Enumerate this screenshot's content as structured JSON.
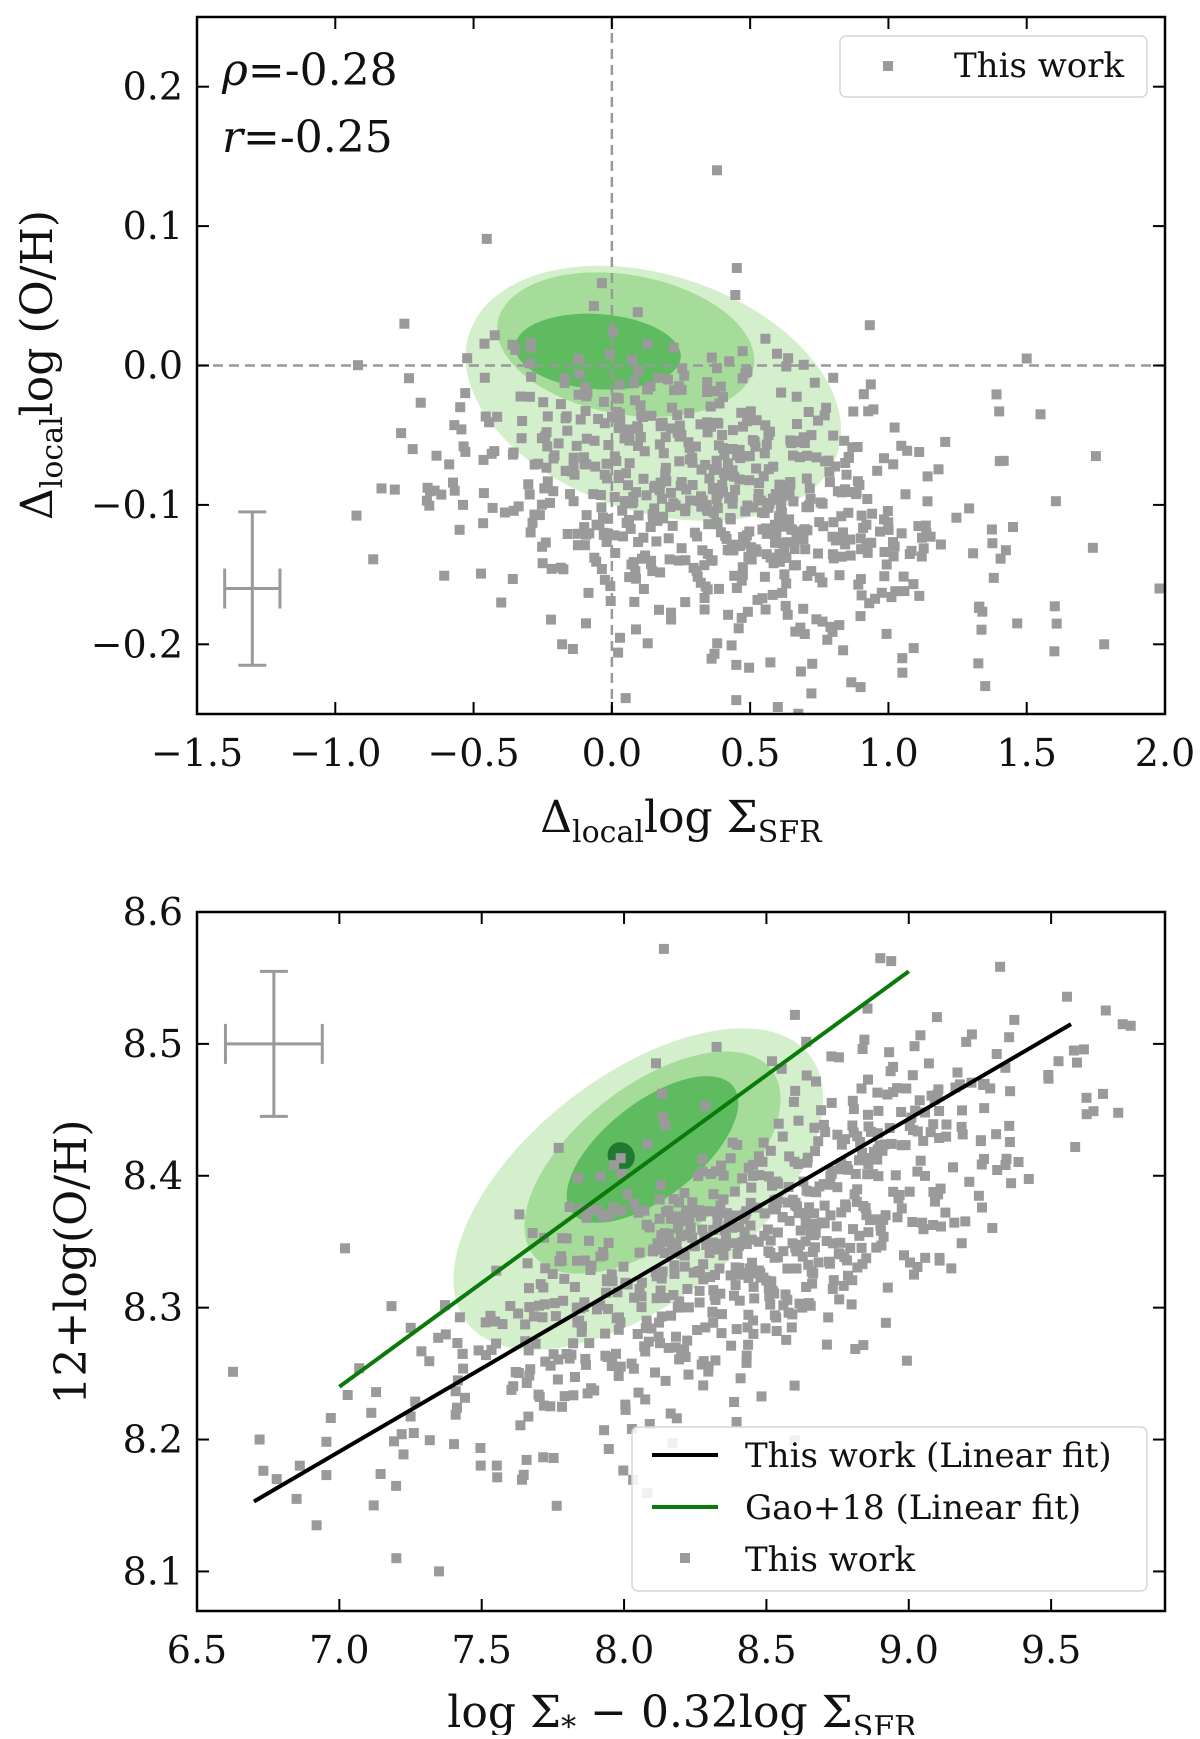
{
  "colors": {
    "points": "#9a9a9a",
    "errorbar": "#9a9a9a",
    "fit_black": "#000000",
    "fit_green": "#0a7a0a",
    "contour_light": "#d4efcc",
    "contour_mid": "#a6dc9a",
    "contour_dark": "#5fbb5f",
    "contour_darkest": "#1f7a30",
    "refline": "#999999"
  },
  "chart_data": [
    {
      "type": "scatter",
      "title": "",
      "xlabel": {
        "main": "Δ",
        "sub": "local",
        "rest": "log Σ",
        "sub2": "SFR"
      },
      "ylabel": {
        "main": "Δ",
        "sub": "local",
        "rest": "log (O/H)"
      },
      "xlim": [
        -1.5,
        2.0
      ],
      "ylim": [
        -0.25,
        0.25
      ],
      "xticks": [
        -1.5,
        -1.0,
        -0.5,
        0.0,
        0.5,
        1.0,
        1.5,
        2.0
      ],
      "xtick_labels": [
        "−1.5",
        "−1.0",
        "−0.5",
        "0.0",
        "0.5",
        "1.0",
        "1.5",
        "2.0"
      ],
      "yticks": [
        -0.2,
        -0.1,
        0.0,
        0.1,
        0.2
      ],
      "ytick_labels": [
        "−0.2",
        "−0.1",
        "0.0",
        "0.1",
        "0.2"
      ],
      "stats": {
        "rho_label": "ρ",
        "rho_value": "=-0.28",
        "r_label": "r",
        "r_value": "=-0.25"
      },
      "legend": {
        "position": "top-right",
        "entries": [
          {
            "label": "This work",
            "marker": "square"
          }
        ]
      },
      "reference_lines": {
        "x": 0.0,
        "y": 0.0
      },
      "errorbar": {
        "x": -1.3,
        "y": -0.16,
        "xerr": 0.1,
        "yerr": 0.055
      },
      "contours": [
        {
          "level": "outer",
          "cx": 0.15,
          "cy": -0.02,
          "rx": 0.7,
          "ry": 0.085,
          "angle": -18
        },
        {
          "level": "mid",
          "cx": 0.05,
          "cy": 0.015,
          "rx": 0.47,
          "ry": 0.05,
          "angle": -10
        },
        {
          "level": "inner",
          "cx": -0.05,
          "cy": 0.01,
          "rx": 0.3,
          "ry": 0.027,
          "angle": -4
        }
      ],
      "points_summary": {
        "count": 700,
        "seed": 11,
        "extra_points": [
          [
            -0.75,
            0.03
          ],
          [
            -0.72,
            -0.06
          ],
          [
            1.5,
            0.005
          ],
          [
            1.55,
            -0.035
          ],
          [
            1.75,
            -0.065
          ],
          [
            1.98,
            -0.16
          ],
          [
            1.6,
            -0.205
          ],
          [
            1.78,
            -0.2
          ],
          [
            0.38,
            0.14
          ],
          [
            0.45,
            -0.24
          ],
          [
            0.6,
            -0.245
          ],
          [
            1.35,
            -0.23
          ],
          [
            1.05,
            -0.21
          ],
          [
            -0.18,
            -0.2
          ],
          [
            -0.4,
            -0.17
          ]
        ]
      },
      "series": [
        {
          "name": "This work",
          "x_center": 0.35,
          "y_center": -0.09,
          "sx": 0.45,
          "sy": 0.055,
          "rho": -0.28
        }
      ]
    },
    {
      "type": "scatter",
      "title": "",
      "xlabel": {
        "main": "log Σ",
        "sub": "*",
        "rest": " − 0.32log Σ",
        "sub2": "SFR"
      },
      "ylabel": {
        "main": "12+log(O/H)"
      },
      "xlim": [
        6.5,
        9.9
      ],
      "ylim": [
        8.07,
        8.6
      ],
      "xticks": [
        6.5,
        7.0,
        7.5,
        8.0,
        8.5,
        9.0,
        9.5
      ],
      "xtick_labels": [
        "6.5",
        "7.0",
        "7.5",
        "8.0",
        "8.5",
        "9.0",
        "9.5"
      ],
      "yticks": [
        8.1,
        8.2,
        8.3,
        8.4,
        8.5,
        8.6
      ],
      "ytick_labels": [
        "8.1",
        "8.2",
        "8.3",
        "8.4",
        "8.5",
        "8.6"
      ],
      "legend": {
        "position": "lower-right",
        "entries": [
          {
            "label": "This work (Linear fit)",
            "marker": "line",
            "color_key": "fit_black"
          },
          {
            "label": "Gao+18 (Linear fit)",
            "marker": "line",
            "color_key": "fit_green"
          },
          {
            "label": "This work",
            "marker": "square"
          }
        ]
      },
      "fits": [
        {
          "name": "This work (Linear fit)",
          "x": [
            6.7,
            9.57
          ],
          "y": [
            8.153,
            8.515
          ]
        },
        {
          "name": "Gao+18 (Linear fit)",
          "x": [
            7.0,
            9.0
          ],
          "y": [
            8.24,
            8.555
          ]
        }
      ],
      "errorbar": {
        "x": 6.77,
        "y": 8.5,
        "xerr": 0.17,
        "yerr": 0.055
      },
      "contours": [
        {
          "level": "outer",
          "cx": 8.05,
          "cy": 8.39,
          "rx": 1.15,
          "ry": 0.095,
          "angle": 40
        },
        {
          "level": "mid",
          "cx": 8.1,
          "cy": 8.41,
          "rx": 0.8,
          "ry": 0.065,
          "angle": 40
        },
        {
          "level": "inner",
          "cx": 8.1,
          "cy": 8.42,
          "rx": 0.55,
          "ry": 0.04,
          "angle": 40
        },
        {
          "level": "darkest",
          "cx": 7.99,
          "cy": 8.415,
          "rx": 0.05,
          "ry": 0.012,
          "angle": 40
        }
      ],
      "points_summary": {
        "count": 750,
        "seed": 23,
        "extra_points": [
          [
            6.72,
            8.2
          ],
          [
            6.78,
            8.17
          ],
          [
            6.85,
            8.155
          ],
          [
            6.92,
            8.135
          ],
          [
            7.02,
            8.345
          ],
          [
            7.35,
            8.1
          ],
          [
            7.2,
            8.11
          ],
          [
            8.14,
            8.572
          ],
          [
            8.9,
            8.565
          ],
          [
            9.58,
            8.495
          ],
          [
            8.6,
            8.522
          ]
        ]
      },
      "series": [
        {
          "name": "This work",
          "x_center": 8.35,
          "y_center": 8.34,
          "sx": 0.55,
          "sy": 0.075,
          "rho": 0.72
        }
      ]
    }
  ]
}
